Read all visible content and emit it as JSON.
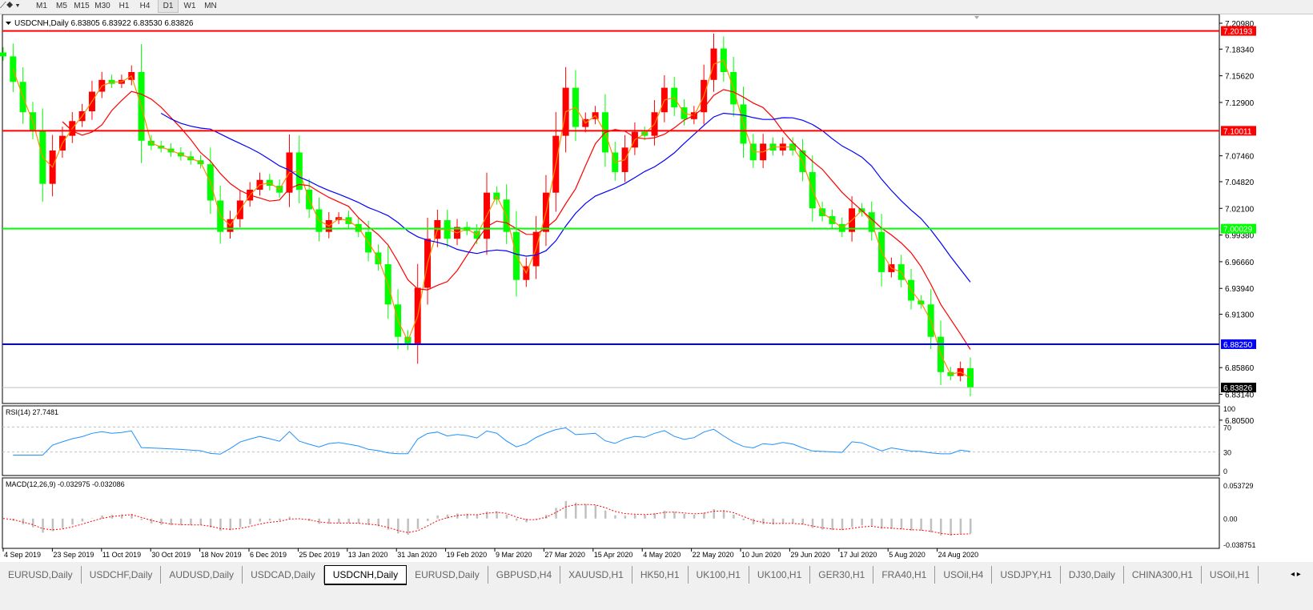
{
  "toolbar": {
    "timeframes": [
      "M1",
      "M5",
      "M15",
      "M30",
      "H1",
      "H4",
      "D1",
      "W1",
      "MN"
    ],
    "active_timeframe": "D1"
  },
  "chart_header": {
    "symbol": "USDCNH,Daily",
    "ohlc": "6.83805 6.83922 6.83530 6.83826"
  },
  "colors": {
    "bull": "#ff0000",
    "bear": "#00ff00",
    "ma_fast": "#ff8c00",
    "ma_mid": "#ff0000",
    "ma_slow": "#0000ff",
    "rsi": "#1e90ff",
    "macd_hist": "#c0c0c0",
    "macd_signal": "#ff0000"
  },
  "chart_data": {
    "type": "candlestick",
    "symbol": "USDCNH",
    "timeframe": "Daily",
    "ylim": [
      6.805,
      7.2098
    ],
    "y_ticks": [
      "7.20980",
      "7.18340",
      "7.15620",
      "7.12900",
      "7.07460",
      "7.04820",
      "7.02100",
      "6.99380",
      "6.96660",
      "6.93940",
      "6.91300",
      "6.85860",
      "6.83140",
      "6.80500"
    ],
    "x_tick_labels": [
      "4 Sep 2019",
      "23 Sep 2019",
      "11 Oct 2019",
      "30 Oct 2019",
      "18 Nov 2019",
      "6 Dec 2019",
      "25 Dec 2019",
      "13 Jan 2020",
      "31 Jan 2020",
      "19 Feb 2020",
      "9 Mar 2020",
      "27 Mar 2020",
      "15 Apr 2020",
      "4 May 2020",
      "22 May 2020",
      "10 Jun 2020",
      "29 Jun 2020",
      "17 Jul 2020",
      "5 Aug 2020",
      "24 Aug 2020"
    ],
    "approx_closes": [
      7.176,
      7.15,
      7.119,
      7.1,
      7.046,
      7.08,
      7.095,
      7.11,
      7.12,
      7.14,
      7.152,
      7.148,
      7.152,
      7.16,
      7.09,
      7.085,
      7.082,
      7.078,
      7.074,
      7.07,
      7.066,
      7.029,
      6.997,
      7.01,
      7.029,
      7.04,
      7.05,
      7.044,
      7.037,
      7.078,
      7.04,
      7.02,
      6.997,
      7.009,
      7.012,
      7.005,
      6.997,
      6.976,
      6.964,
      6.923,
      6.89,
      6.882,
      6.94,
      6.99,
      7.009,
      6.99,
      7.002,
      6.998,
      6.99,
      7.037,
      7.03,
      6.997,
      6.948,
      6.962,
      6.997,
      7.037,
      7.095,
      7.144,
      7.104,
      7.112,
      7.119,
      7.078,
      7.058,
      7.083,
      7.099,
      7.095,
      7.119,
      7.144,
      7.124,
      7.112,
      7.119,
      7.152,
      7.184,
      7.16,
      7.127,
      7.087,
      7.07,
      7.087,
      7.08,
      7.087,
      7.08,
      7.058,
      7.021,
      7.013,
      7.005,
      6.997,
      7.021,
      7.017,
      6.997,
      6.956,
      6.964,
      6.948,
      6.927,
      6.923,
      6.89,
      6.854,
      6.85,
      6.858,
      6.838
    ],
    "horizontal_lines": [
      {
        "price": "7.20193",
        "color": "#ff0000"
      },
      {
        "price": "7.10011",
        "color": "#ff0000"
      },
      {
        "price": "7.00029",
        "color": "#00ff00"
      },
      {
        "price": "6.88250",
        "color": "#0000ff"
      },
      {
        "price": "6.83826",
        "color": "#000000",
        "type": "bid"
      }
    ],
    "indicators": {
      "rsi": {
        "label": "RSI(14) 27.7481",
        "levels": [
          "100",
          "70",
          "30",
          "0"
        ],
        "ylim": [
          0,
          100
        ]
      },
      "macd": {
        "label": "MACD(12,26,9) -0.032975 -0.032086",
        "ticks": [
          "0.053729",
          "0.00",
          "-0.038751"
        ],
        "ylim": [
          -0.038751,
          0.053729
        ]
      }
    }
  },
  "tabs": [
    "EURUSD,Daily",
    "USDCHF,Daily",
    "AUDUSD,Daily",
    "USDCAD,Daily",
    "USDCNH,Daily",
    "EURUSD,Daily",
    "GBPUSD,H4",
    "XAUUSD,H1",
    "HK50,H1",
    "UK100,H1",
    "UK100,H1",
    "GER30,H1",
    "FRA40,H1",
    "USOil,H4",
    "USDJPY,H1",
    "DJ30,Daily",
    "CHINA300,H1",
    "USOil,H1"
  ],
  "active_tab": "USDCNH,Daily"
}
